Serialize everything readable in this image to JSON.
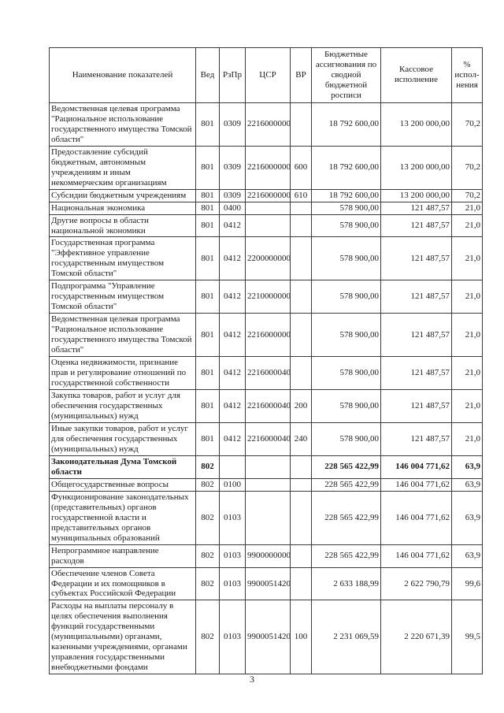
{
  "page_number": "3",
  "table": {
    "headers": {
      "name": "Наименование показателей",
      "ved": "Вед",
      "rzpr": "РзПр",
      "csr": "ЦСР",
      "vr": "ВР",
      "budget": "Бюджетные ассигнования по сводной бюджетной росписи",
      "cash": "Кассовое исполнение",
      "pct": "% испол-нения"
    },
    "rows": [
      {
        "name": "Ведомственная целевая программа \"Рациональное использование государственного имущества Томской области\"",
        "ved": "801",
        "rzpr": "0309",
        "csr": "2216000000",
        "vr": "",
        "budget": "18 792 600,00",
        "cash": "13 200 000,00",
        "pct": "70,2",
        "bold": false
      },
      {
        "name": "Предоставление субсидий бюджетным, автономным учреждениям и иным некоммерческим организациям",
        "ved": "801",
        "rzpr": "0309",
        "csr": "2216000000",
        "vr": "600",
        "budget": "18 792 600,00",
        "cash": "13 200 000,00",
        "pct": "70,2",
        "bold": false
      },
      {
        "name": "Субсидии бюджетным учреждениям",
        "ved": "801",
        "rzpr": "0309",
        "csr": "2216000000",
        "vr": "610",
        "budget": "18 792 600,00",
        "cash": "13 200 000,00",
        "pct": "70,2",
        "bold": false
      },
      {
        "name": "Национальная экономика",
        "ved": "801",
        "rzpr": "0400",
        "csr": "",
        "vr": "",
        "budget": "578 900,00",
        "cash": "121 487,57",
        "pct": "21,0",
        "bold": false
      },
      {
        "name": "Другие вопросы в области национальной экономики",
        "ved": "801",
        "rzpr": "0412",
        "csr": "",
        "vr": "",
        "budget": "578 900,00",
        "cash": "121 487,57",
        "pct": "21,0",
        "bold": false
      },
      {
        "name": "Государственная программа \"Эффективное управление государственным имуществом Томской области\"",
        "ved": "801",
        "rzpr": "0412",
        "csr": "2200000000",
        "vr": "",
        "budget": "578 900,00",
        "cash": "121 487,57",
        "pct": "21,0",
        "bold": false
      },
      {
        "name": "Подпрограмма \"Управление государственным имуществом Томской области\"",
        "ved": "801",
        "rzpr": "0412",
        "csr": "2210000000",
        "vr": "",
        "budget": "578 900,00",
        "cash": "121 487,57",
        "pct": "21,0",
        "bold": false
      },
      {
        "name": "Ведомственная целевая программа \"Рациональное использование государственного имущества Томской области\"",
        "ved": "801",
        "rzpr": "0412",
        "csr": "2216000000",
        "vr": "",
        "budget": "578 900,00",
        "cash": "121 487,57",
        "pct": "21,0",
        "bold": false
      },
      {
        "name": "Оценка недвижимости, признание прав и регулирование отношений по государственной собственности",
        "ved": "801",
        "rzpr": "0412",
        "csr": "2216000040",
        "vr": "",
        "budget": "578 900,00",
        "cash": "121 487,57",
        "pct": "21,0",
        "bold": false
      },
      {
        "name": "Закупка товаров, работ и услуг для обеспечения государственных (муниципальных) нужд",
        "ved": "801",
        "rzpr": "0412",
        "csr": "2216000040",
        "vr": "200",
        "budget": "578 900,00",
        "cash": "121 487,57",
        "pct": "21,0",
        "bold": false
      },
      {
        "name": "Иные закупки товаров, работ и услуг для обеспечения государственных (муниципальных) нужд",
        "ved": "801",
        "rzpr": "0412",
        "csr": "2216000040",
        "vr": "240",
        "budget": "578 900,00",
        "cash": "121 487,57",
        "pct": "21,0",
        "bold": false
      },
      {
        "name": "Законодательная Дума Томской области",
        "ved": "802",
        "rzpr": "",
        "csr": "",
        "vr": "",
        "budget": "228 565 422,99",
        "cash": "146 004 771,62",
        "pct": "63,9",
        "bold": true
      },
      {
        "name": "Общегосударственные вопросы",
        "ved": "802",
        "rzpr": "0100",
        "csr": "",
        "vr": "",
        "budget": "228 565 422,99",
        "cash": "146 004 771,62",
        "pct": "63,9",
        "bold": false
      },
      {
        "name": "Функционирование законодательных (представительных) органов государственной власти и представительных органов муниципальных образований",
        "ved": "802",
        "rzpr": "0103",
        "csr": "",
        "vr": "",
        "budget": "228 565 422,99",
        "cash": "146 004 771,62",
        "pct": "63,9",
        "bold": false
      },
      {
        "name": "Непрограммное направление расходов",
        "ved": "802",
        "rzpr": "0103",
        "csr": "9900000000",
        "vr": "",
        "budget": "228 565 422,99",
        "cash": "146 004 771,62",
        "pct": "63,9",
        "bold": false
      },
      {
        "name": "Обеспечение членов Совета Федерации и их помощников в субъектах Российской Федерации",
        "ved": "802",
        "rzpr": "0103",
        "csr": "9900051420",
        "vr": "",
        "budget": "2 633 188,99",
        "cash": "2 622 790,79",
        "pct": "99,6",
        "bold": false
      },
      {
        "name": "Расходы на выплаты персоналу в целях обеспечения выполнения функций государственными (муниципальными) органами, казенными учреждениями, органами управления государственными внебюджетными фондами",
        "ved": "802",
        "rzpr": "0103",
        "csr": "9900051420",
        "vr": "100",
        "budget": "2 231 069,59",
        "cash": "2 220 671,39",
        "pct": "99,5",
        "bold": false
      }
    ]
  }
}
